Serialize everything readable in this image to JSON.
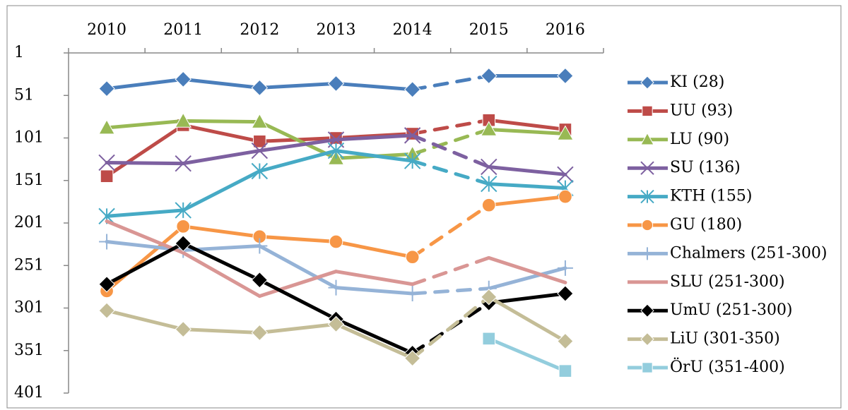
{
  "chart_data": {
    "type": "line",
    "categories": [
      "2010",
      "2011",
      "2012",
      "2013",
      "2014",
      "2015",
      "2016"
    ],
    "ylim": [
      1,
      401
    ],
    "y_inverted": true,
    "yticks": [
      1,
      51,
      101,
      151,
      201,
      251,
      301,
      351,
      401
    ],
    "dashed_between": [
      "2014",
      "2015"
    ],
    "legend": "right",
    "series": [
      {
        "name": "KI (28)",
        "color": "#4a7ebb",
        "marker": "diamond",
        "values": [
          43,
          32,
          42,
          37,
          44,
          28,
          28
        ]
      },
      {
        "name": "UU (93)",
        "color": "#be4b48",
        "marker": "square",
        "values": [
          146,
          86,
          105,
          101,
          96,
          80,
          91
        ]
      },
      {
        "name": "LU (90)",
        "color": "#98b954",
        "marker": "triangle",
        "values": [
          89,
          81,
          82,
          125,
          120,
          91,
          96
        ]
      },
      {
        "name": "SU (136)",
        "color": "#7d60a0",
        "marker": "x",
        "values": [
          130,
          131,
          116,
          103,
          98,
          135,
          144
        ]
      },
      {
        "name": "KTH (155)",
        "color": "#46aac5",
        "marker": "asterisk",
        "values": [
          193,
          186,
          140,
          116,
          128,
          155,
          160
        ]
      },
      {
        "name": "GU (180)",
        "color": "#f79646",
        "marker": "circle",
        "values": [
          281,
          205,
          217,
          223,
          241,
          180,
          170
        ]
      },
      {
        "name": "Chalmers (251-300)",
        "color": "#95b3d7",
        "marker": "plus",
        "values": [
          223,
          233,
          228,
          277,
          284,
          278,
          254
        ]
      },
      {
        "name": "SLU (251-300)",
        "color": "#d99694",
        "marker": "none",
        "values": [
          199,
          236,
          287,
          258,
          273,
          242,
          271
        ]
      },
      {
        "name": "UmU (251-300)",
        "color": "#000000",
        "marker": "diamond",
        "values": [
          273,
          225,
          268,
          314,
          354,
          295,
          284
        ]
      },
      {
        "name": "LiU (301-350)",
        "color": "#c4bd97",
        "marker": "diamond",
        "values": [
          304,
          326,
          330,
          320,
          360,
          288,
          340
        ]
      },
      {
        "name": "ÖrU (351-400)",
        "color": "#93cddd",
        "marker": "square",
        "values": [
          null,
          null,
          null,
          null,
          null,
          337,
          375
        ]
      }
    ]
  }
}
